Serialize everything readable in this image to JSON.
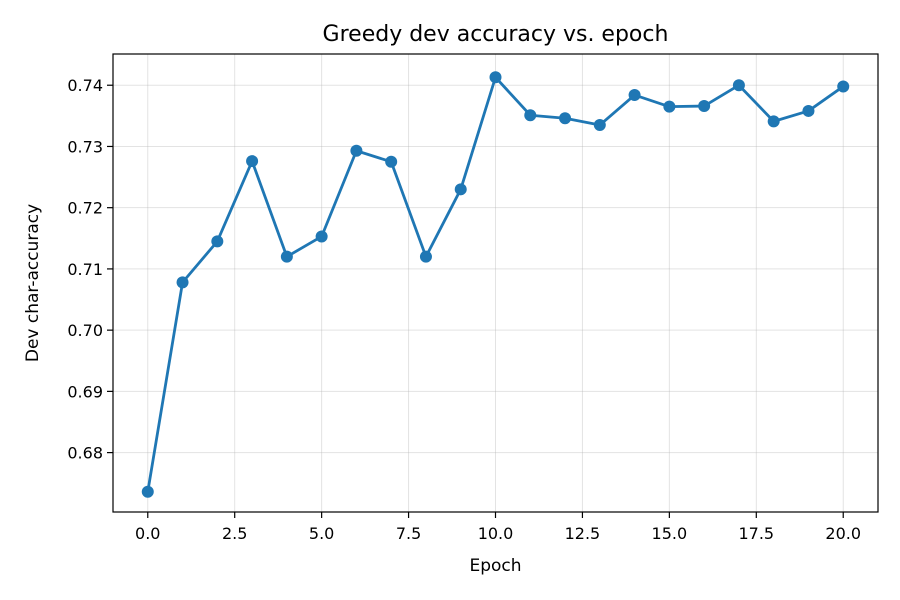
{
  "chart_data": {
    "type": "line",
    "title": "Greedy dev accuracy vs. epoch",
    "xlabel": "Epoch",
    "ylabel": "Dev char-accuracy",
    "xlim": [
      -1.0,
      21.0
    ],
    "ylim": [
      0.6703,
      0.7451
    ],
    "xticks": [
      0.0,
      2.5,
      5.0,
      7.5,
      10.0,
      12.5,
      15.0,
      17.5,
      20.0
    ],
    "xtick_labels": [
      "0.0",
      "2.5",
      "5.0",
      "7.5",
      "10.0",
      "12.5",
      "15.0",
      "17.5",
      "20.0"
    ],
    "yticks": [
      0.68,
      0.69,
      0.7,
      0.71,
      0.72,
      0.73,
      0.74
    ],
    "ytick_labels": [
      "0.68",
      "0.69",
      "0.70",
      "0.71",
      "0.72",
      "0.73",
      "0.74"
    ],
    "grid": true,
    "color": "#1f77b4",
    "marker": "circle",
    "series": [
      {
        "x": [
          0,
          1,
          2,
          3,
          4,
          5,
          6,
          7,
          8,
          9,
          10,
          11,
          12,
          13,
          14,
          15,
          16,
          17,
          18,
          19,
          20
        ],
        "y": [
          0.6736,
          0.7078,
          0.7145,
          0.7276,
          0.712,
          0.7153,
          0.7293,
          0.7275,
          0.712,
          0.723,
          0.7413,
          0.7351,
          0.7346,
          0.7335,
          0.7384,
          0.7365,
          0.7366,
          0.74,
          0.7341,
          0.7358,
          0.7398
        ]
      }
    ]
  }
}
